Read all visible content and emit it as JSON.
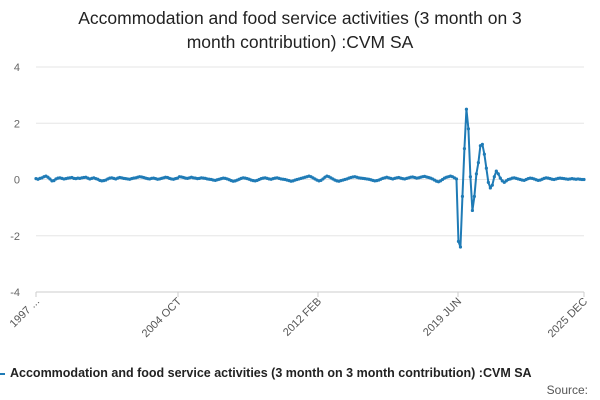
{
  "title_line1": "Accommodation and food service activities (3 month on 3",
  "title_line2": "month contribution) :CVM SA",
  "legend_label": "Accommodation and food service activities (3 month on 3 month contribution) :CVM SA",
  "source_label": "Source:",
  "colors": {
    "series": "#1f7bb6",
    "grid": "#e6e6e6",
    "axis": "#cccccc"
  },
  "chart_data": {
    "type": "line",
    "ylim": [
      -4,
      4
    ],
    "yticks": [
      "4",
      "2",
      "0",
      "-2",
      "-4"
    ],
    "xticks": [
      "1997 ...",
      "2004 OCT",
      "2012 FEB",
      "2019 JUN",
      "2025 DEC"
    ],
    "grid": true,
    "legend_position": "bottom",
    "series": [
      {
        "name": "Accommodation and food service activities (3 month on 3 month contribution) :CVM SA",
        "values": [
          0.03,
          0.01,
          0.04,
          0.06,
          0.1,
          0.12,
          0.08,
          0.02,
          -0.05,
          -0.04,
          0.02,
          0.05,
          0.06,
          0.04,
          0.02,
          0.03,
          0.05,
          0.06,
          0.07,
          0.04,
          0.03,
          0.05,
          0.04,
          0.06,
          0.07,
          0.08,
          0.05,
          0.02,
          0.04,
          0.06,
          0.03,
          0.01,
          -0.03,
          -0.05,
          -0.04,
          -0.02,
          0.02,
          0.05,
          0.06,
          0.04,
          0.02,
          0.05,
          0.07,
          0.06,
          0.04,
          0.03,
          0.02,
          0.01,
          0.03,
          0.05,
          0.06,
          0.08,
          0.1,
          0.09,
          0.07,
          0.05,
          0.03,
          0.02,
          0.04,
          0.05,
          0.03,
          0.01,
          0.02,
          0.04,
          0.06,
          0.08,
          0.07,
          0.04,
          0.02,
          0.01,
          0.03,
          0.05,
          0.1,
          0.09,
          0.07,
          0.05,
          0.04,
          0.06,
          0.08,
          0.06,
          0.05,
          0.03,
          0.04,
          0.06,
          0.05,
          0.04,
          0.02,
          0.01,
          0.0,
          -0.02,
          -0.03,
          -0.01,
          0.01,
          0.03,
          0.05,
          0.04,
          0.02,
          -0.01,
          -0.04,
          -0.06,
          -0.05,
          -0.02,
          0.01,
          0.04,
          0.06,
          0.05,
          0.03,
          0.01,
          -0.02,
          -0.04,
          -0.05,
          -0.03,
          0.0,
          0.03,
          0.05,
          0.06,
          0.04,
          0.02,
          0.01,
          0.03,
          0.05,
          0.06,
          0.04,
          0.02,
          0.01,
          0.0,
          -0.02,
          -0.04,
          -0.06,
          -0.05,
          -0.02,
          0.0,
          0.02,
          0.04,
          0.06,
          0.08,
          0.1,
          0.12,
          0.1,
          0.06,
          0.02,
          -0.02,
          -0.05,
          -0.03,
          0.02,
          0.08,
          0.12,
          0.1,
          0.06,
          0.02,
          -0.02,
          -0.05,
          -0.06,
          -0.04,
          -0.02,
          0.0,
          0.02,
          0.05,
          0.07,
          0.09,
          0.1,
          0.08,
          0.06,
          0.05,
          0.04,
          0.03,
          0.02,
          0.01,
          -0.01,
          -0.03,
          -0.05,
          -0.04,
          -0.02,
          0.01,
          0.04,
          0.06,
          0.08,
          0.06,
          0.04,
          0.02,
          0.04,
          0.06,
          0.07,
          0.05,
          0.03,
          0.02,
          0.04,
          0.06,
          0.08,
          0.09,
          0.07,
          0.05,
          0.06,
          0.08,
          0.1,
          0.11,
          0.09,
          0.07,
          0.05,
          0.02,
          -0.02,
          -0.06,
          -0.08,
          -0.05,
          0.0,
          0.05,
          0.08,
          0.1,
          0.12,
          0.1,
          0.06,
          0.02,
          -2.2,
          -2.4,
          -0.6,
          1.1,
          2.5,
          1.8,
          0.1,
          -1.1,
          -0.6,
          0.2,
          0.6,
          1.2,
          1.25,
          0.9,
          0.4,
          -0.1,
          -0.3,
          -0.2,
          0.1,
          0.3,
          0.2,
          0.05,
          -0.05,
          -0.1,
          -0.05,
          0.0,
          0.02,
          0.05,
          0.06,
          0.04,
          0.02,
          0.0,
          -0.02,
          -0.03,
          0.0,
          0.03,
          0.05,
          0.04,
          0.02,
          -0.01,
          -0.03,
          -0.02,
          0.01,
          0.04,
          0.06,
          0.05,
          0.03,
          0.01,
          0.0,
          0.02,
          0.04,
          0.05,
          0.04,
          0.03,
          0.02,
          0.01,
          0.02,
          0.03,
          0.02,
          0.01,
          0.02,
          0.01,
          0.0,
          0.0
        ]
      }
    ]
  }
}
